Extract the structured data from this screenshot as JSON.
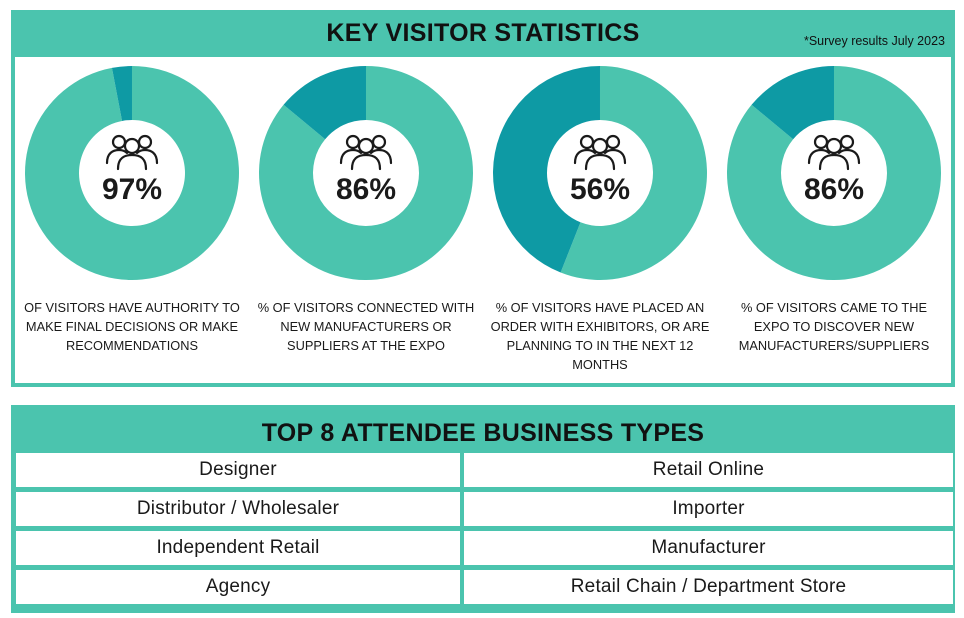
{
  "stats": {
    "title": "KEY VISITOR STATISTICS",
    "note": "*Survey results July 2023"
  },
  "colors": {
    "accent_light": "#4bc4ae",
    "accent_dark": "#0e9aa4",
    "text": "#1a1a1a"
  },
  "chart_data": [
    {
      "type": "pie",
      "value": 97,
      "label": "97%",
      "caption": "OF VISITORS HAVE AUTHORITY TO MAKE FINAL DECISIONS OR MAKE RECOMMENDATIONS",
      "icon": "people-group-icon"
    },
    {
      "type": "pie",
      "value": 86,
      "label": "86%",
      "caption": "% OF VISITORS CONNECTED WITH NEW MANUFACTURERS OR SUPPLIERS AT THE EXPO",
      "icon": "people-group-icon"
    },
    {
      "type": "pie",
      "value": 56,
      "label": "56%",
      "caption": "% OF VISITORS HAVE PLACED AN ORDER  WITH EXHIBITORS, OR ARE PLANNING TO IN THE NEXT 12 MONTHS",
      "icon": "people-group-icon"
    },
    {
      "type": "pie",
      "value": 86,
      "label": "86%",
      "caption": "% OF VISITORS CAME TO THE EXPO TO DISCOVER NEW MANUFACTURERS/SUPPLIERS",
      "icon": "people-group-icon"
    }
  ],
  "business_types": {
    "title": "TOP 8 ATTENDEE BUSINESS TYPES",
    "rows": [
      [
        "Designer",
        "Retail Online"
      ],
      [
        "Distributor / Wholesaler",
        "Importer"
      ],
      [
        "Independent Retail",
        "Manufacturer"
      ],
      [
        "Agency",
        "Retail Chain / Department Store"
      ]
    ]
  }
}
